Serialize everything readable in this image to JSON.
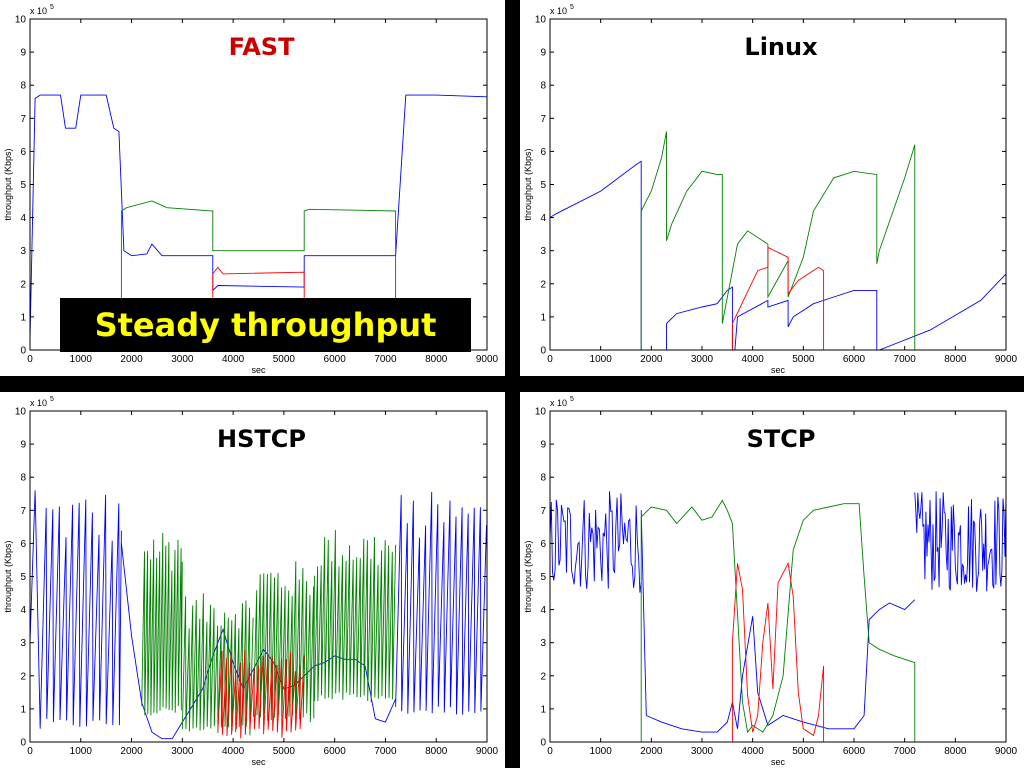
{
  "banner": {
    "text": "Steady throughput"
  },
  "colors": {
    "background": "#000000",
    "panel": "#ffffff",
    "fast_title": "#cc0000",
    "series_blue": "#0000ff",
    "series_green": "#008000",
    "series_red": "#ff0000",
    "banner_text": "#ffff00"
  },
  "chart_data": [
    {
      "type": "line",
      "title": "FAST",
      "title_color": "#cc0000",
      "xlabel": "sec",
      "ylabel": "throughput (Kbps)",
      "y_multiplier": "x 10",
      "y_exponent": "5",
      "xlim": [
        0,
        9000
      ],
      "ylim": [
        0,
        10
      ],
      "xticks": [
        "0",
        "1000",
        "2000",
        "3000",
        "4000",
        "5000",
        "6000",
        "7000",
        "8000",
        "9000"
      ],
      "yticks": [
        "0",
        "1",
        "2",
        "3",
        "4",
        "5",
        "6",
        "7",
        "8",
        "9",
        "10"
      ],
      "grid": false,
      "series": [
        {
          "color": "#0000ff",
          "x": [
            0,
            100,
            200,
            600,
            700,
            900,
            1000,
            1100,
            1500,
            1650,
            1750,
            1850,
            2000,
            2300,
            2400,
            2600,
            3000,
            3500,
            3600,
            3600,
            3700,
            5400,
            5400,
            5500,
            7000,
            7200,
            7400,
            8000,
            9000
          ],
          "y": [
            0.3,
            7.6,
            7.7,
            7.7,
            6.7,
            6.7,
            7.7,
            7.7,
            7.7,
            6.7,
            6.6,
            3.0,
            2.85,
            2.9,
            3.2,
            2.85,
            2.85,
            2.85,
            2.85,
            1.8,
            1.95,
            1.9,
            2.85,
            2.85,
            2.85,
            2.85,
            7.7,
            7.7,
            7.65
          ]
        },
        {
          "color": "#008000",
          "x": [
            1800,
            1800,
            1900,
            2400,
            2700,
            3600,
            3600,
            3700,
            5400,
            5400,
            5500,
            7200,
            7200
          ],
          "y": [
            0,
            4.2,
            4.3,
            4.5,
            4.3,
            4.2,
            3.0,
            3.0,
            3.0,
            4.2,
            4.25,
            4.2,
            0
          ]
        },
        {
          "color": "#ff0000",
          "x": [
            3600,
            3600,
            3700,
            3800,
            5400,
            5400
          ],
          "y": [
            0,
            2.3,
            2.5,
            2.3,
            2.35,
            0
          ]
        }
      ]
    },
    {
      "type": "line",
      "title": "Linux",
      "title_color": "#000000",
      "xlabel": "sec",
      "ylabel": "throughput (Kbps)",
      "y_multiplier": "x 10",
      "y_exponent": "5",
      "xlim": [
        0,
        9000
      ],
      "ylim": [
        0,
        10
      ],
      "xticks": [
        "0",
        "1000",
        "2000",
        "3000",
        "4000",
        "5000",
        "6000",
        "7000",
        "8000",
        "9000"
      ],
      "yticks": [
        "0",
        "1",
        "2",
        "3",
        "4",
        "5",
        "6",
        "7",
        "8",
        "9",
        "10"
      ],
      "grid": false,
      "series": [
        {
          "color": "#0000ff",
          "x": [
            0,
            0,
            100,
            1000,
            1700,
            1800,
            1800,
            2300,
            2300,
            2500,
            3000,
            3300,
            3500,
            3600,
            3600,
            3650,
            3700,
            4300,
            4300,
            4700,
            4700,
            4800,
            5200,
            5600,
            6000,
            6450,
            6450,
            6500,
            7500,
            8500,
            9000
          ],
          "y": [
            3.8,
            4.0,
            4.1,
            4.8,
            5.6,
            5.7,
            0,
            0,
            0.8,
            1.1,
            1.3,
            1.4,
            1.8,
            1.9,
            0,
            0,
            1.0,
            1.5,
            1.3,
            1.5,
            0.7,
            1.0,
            1.4,
            1.6,
            1.8,
            1.8,
            0,
            0,
            0.6,
            1.5,
            2.3
          ]
        },
        {
          "color": "#008000",
          "x": [
            1800,
            1800,
            2000,
            2200,
            2300,
            2300,
            2400,
            2700,
            3000,
            3300,
            3400,
            3400,
            3700,
            3900,
            4200,
            4300,
            4300,
            4700,
            4700,
            5000,
            5200,
            5600,
            6000,
            6450,
            6450,
            6500,
            7000,
            7200,
            7200
          ],
          "y": [
            0,
            4.2,
            4.8,
            5.8,
            6.6,
            3.3,
            3.8,
            4.8,
            5.4,
            5.3,
            5.3,
            0.8,
            3.2,
            3.6,
            3.3,
            3.2,
            1.6,
            2.7,
            1.6,
            2.8,
            4.2,
            5.2,
            5.4,
            5.3,
            2.6,
            3.0,
            5.2,
            6.2,
            0
          ]
        },
        {
          "color": "#ff0000",
          "x": [
            3600,
            3600,
            4100,
            4300,
            4300,
            4700,
            4700,
            4900,
            5300,
            5400,
            5400
          ],
          "y": [
            0,
            0.8,
            2.4,
            2.5,
            3.1,
            2.8,
            1.7,
            2.1,
            2.5,
            2.4,
            0
          ]
        }
      ]
    },
    {
      "type": "line",
      "title": "HSTCP",
      "title_color": "#000000",
      "xlabel": "sec",
      "ylabel": "throughput (Kbps)",
      "y_multiplier": "x 10",
      "y_exponent": "5",
      "xlim": [
        0,
        9000
      ],
      "ylim": [
        0,
        10
      ],
      "xticks": [
        "0",
        "1000",
        "2000",
        "3000",
        "4000",
        "5000",
        "6000",
        "7000",
        "8000",
        "9000"
      ],
      "yticks": [
        "0",
        "1",
        "2",
        "3",
        "4",
        "5",
        "6",
        "7",
        "8",
        "9",
        "10"
      ],
      "grid": false,
      "series": [
        {
          "color": "#0000ff",
          "pattern": "sawtooth",
          "x_start": 200,
          "x_end": 1800,
          "period": 130,
          "low": 0.4,
          "high": 7.7
        },
        {
          "color": "#0000ff",
          "x": [
            0,
            100,
            200
          ],
          "y": [
            3.0,
            7.6,
            0.4
          ]
        },
        {
          "color": "#0000ff",
          "x": [
            1800,
            2000,
            2200,
            2400,
            2600,
            2800,
            3000,
            3200,
            3400,
            3600,
            3800,
            4000,
            4200,
            4400,
            4600,
            4800,
            5000,
            5200,
            5400,
            5600,
            5800,
            6000,
            6200,
            6400,
            6600,
            6800,
            7000,
            7200
          ],
          "y": [
            6.0,
            3.2,
            1.2,
            0.3,
            0.1,
            0.1,
            0.6,
            1.1,
            1.6,
            2.6,
            3.4,
            2.4,
            1.6,
            2.2,
            2.8,
            2.4,
            1.6,
            1.7,
            2.0,
            2.3,
            2.4,
            2.6,
            2.5,
            2.5,
            2.3,
            0.7,
            0.6,
            1.3
          ]
        },
        {
          "color": "#0000ff",
          "pattern": "sawtooth",
          "x_start": 7200,
          "x_end": 9000,
          "period": 120,
          "low": 0.8,
          "high": 7.6
        },
        {
          "color": "#008000",
          "pattern": "sawtooth",
          "x_start": 2200,
          "x_end": 3000,
          "period": 60,
          "low": 0.8,
          "high": 6.6
        },
        {
          "color": "#008000",
          "pattern": "sawtooth",
          "x_start": 3000,
          "x_end": 4400,
          "period": 70,
          "low": 0.2,
          "high": 4.5
        },
        {
          "color": "#008000",
          "pattern": "sawtooth",
          "x_start": 4400,
          "x_end": 5600,
          "period": 70,
          "low": 0.6,
          "high": 5.5
        },
        {
          "color": "#008000",
          "pattern": "sawtooth",
          "x_start": 5600,
          "x_end": 7200,
          "period": 70,
          "low": 1.2,
          "high": 6.5
        },
        {
          "color": "#ff0000",
          "pattern": "sawtooth",
          "x_start": 3700,
          "x_end": 5400,
          "period": 90,
          "low": 0.1,
          "high": 2.8
        }
      ]
    },
    {
      "type": "line",
      "title": "STCP",
      "title_color": "#000000",
      "xlabel": "sec",
      "ylabel": "throughput (Kbps)",
      "y_multiplier": "x 10",
      "y_exponent": "5",
      "xlim": [
        0,
        9000
      ],
      "ylim": [
        0,
        10
      ],
      "xticks": [
        "0",
        "1000",
        "2000",
        "3000",
        "4000",
        "5000",
        "6000",
        "7000",
        "8000",
        "9000"
      ],
      "yticks": [
        "0",
        "1",
        "2",
        "3",
        "4",
        "5",
        "6",
        "7",
        "8",
        "9",
        "10"
      ],
      "grid": false,
      "series": [
        {
          "color": "#0000ff",
          "pattern": "noise",
          "x_start": 0,
          "x_end": 1800,
          "period": 25,
          "low": 4.5,
          "high": 7.6
        },
        {
          "color": "#0000ff",
          "x": [
            1800,
            1900,
            2200,
            2600,
            3000,
            3300,
            3500,
            3600,
            3700,
            3800,
            4000,
            4100,
            4300,
            4600,
            5000,
            5500,
            6000,
            6200,
            6300,
            6500,
            6700,
            7000,
            7200
          ],
          "y": [
            7.0,
            0.8,
            0.6,
            0.4,
            0.3,
            0.3,
            0.6,
            1.2,
            0.4,
            2.0,
            3.8,
            1.5,
            0.5,
            0.8,
            0.6,
            0.4,
            0.4,
            0.8,
            3.7,
            4.0,
            4.2,
            4.0,
            4.3
          ]
        },
        {
          "color": "#0000ff",
          "pattern": "noise",
          "x_start": 7200,
          "x_end": 9000,
          "period": 20,
          "low": 4.5,
          "high": 7.6
        },
        {
          "color": "#008000",
          "x": [
            1800,
            1800,
            2000,
            2300,
            2500,
            2800,
            3000,
            3200,
            3400,
            3500,
            3600,
            3800,
            3900,
            4000,
            4200,
            4400,
            4600,
            4800,
            5000,
            5200,
            5500,
            5800,
            6100,
            6200,
            6300,
            6500,
            6800,
            7000,
            7200,
            7200
          ],
          "y": [
            0,
            6.8,
            7.1,
            7.0,
            6.6,
            7.1,
            6.7,
            6.8,
            7.3,
            7.0,
            6.6,
            1.2,
            0.3,
            0.5,
            0.3,
            0.8,
            2.0,
            5.8,
            6.7,
            7.0,
            7.1,
            7.2,
            7.2,
            5.0,
            3.0,
            2.8,
            2.6,
            2.5,
            2.4,
            0
          ]
        },
        {
          "color": "#ff0000",
          "x": [
            3600,
            3600,
            3700,
            3800,
            3900,
            4000,
            4100,
            4200,
            4300,
            4400,
            4500,
            4700,
            4800,
            4900,
            5000,
            5200,
            5300,
            5400,
            5400
          ],
          "y": [
            0,
            3.0,
            5.4,
            4.6,
            1.4,
            0.3,
            0.8,
            3.0,
            4.2,
            1.6,
            4.8,
            5.4,
            4.4,
            1.5,
            0.4,
            0.2,
            0.8,
            2.3,
            0
          ]
        }
      ]
    }
  ]
}
